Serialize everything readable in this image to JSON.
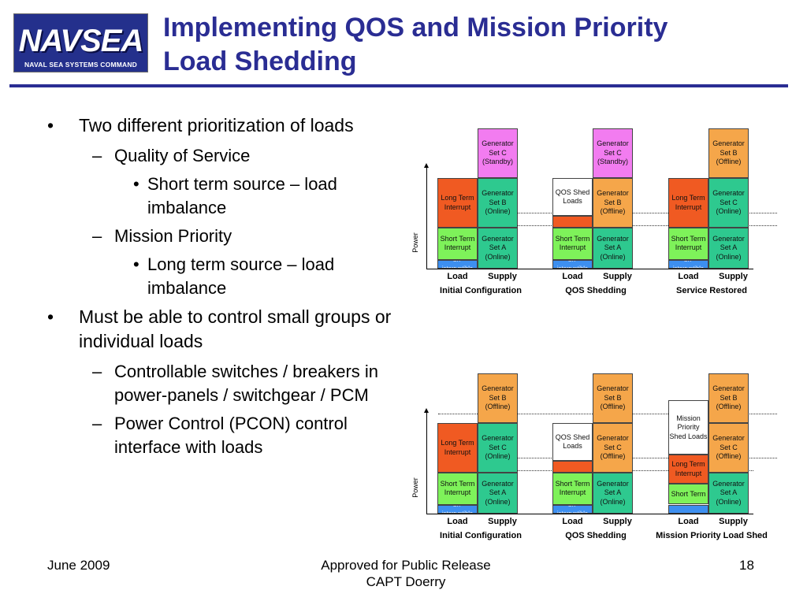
{
  "logo": {
    "word": "NAVSEA",
    "subtitle": "NAVAL SEA SYSTEMS COMMAND"
  },
  "title": {
    "line1": "Implementing QOS and Mission Priority",
    "line2": "Load Shedding"
  },
  "bullets": [
    {
      "level": 1,
      "marker": "•",
      "text": "Two different prioritization of loads"
    },
    {
      "level": 2,
      "marker": "–",
      "text": "Quality of Service"
    },
    {
      "level": 3,
      "marker": "•",
      "text": "Short term source – load imbalance"
    },
    {
      "level": 2,
      "marker": "–",
      "text": "Mission Priority"
    },
    {
      "level": 3,
      "marker": "•",
      "text": "Long term source – load imbalance"
    },
    {
      "level": 1,
      "marker": "•",
      "text": "Must be able to control small groups or individual loads"
    },
    {
      "level": 2,
      "marker": "–",
      "text": "Controllable switches / breakers in power-panels / switchgear / PCM"
    },
    {
      "level": 2,
      "marker": "–",
      "text": "Power Control (PCON) control interface with loads"
    }
  ],
  "colors": {
    "magenta": "#f27cf0",
    "orange": "#f5a64a",
    "red": "#f05a22",
    "green": "#2ec98f",
    "lime": "#7ef25a",
    "blue": "#3d8ff0"
  },
  "rows": [
    {
      "ylabel": "Power",
      "panels": [
        {
          "name": "initial-configuration",
          "caption": "Initial Configuration",
          "load_label": "Load",
          "supply_label": "Supply",
          "load": [
            {
              "text": "Un-interruptible",
              "color": "blue",
              "units": 1
            },
            {
              "text": "Short Term Interrupt",
              "color": "lime",
              "units": 3.5
            },
            {
              "text": "Long Term Interrupt",
              "color": "red",
              "units": 5.5
            }
          ],
          "supply": [
            {
              "text": "Generator Set A (Online)",
              "color": "green",
              "units": 4.5
            },
            {
              "text": "Generator Set B (Online)",
              "color": "green",
              "units": 5.5
            },
            {
              "text": "Generator Set C (Standby)",
              "color": "magenta",
              "units": 5.5
            }
          ]
        },
        {
          "name": "qos-shedding",
          "caption": "QOS Shedding",
          "load_label": "Load",
          "supply_label": "Supply",
          "load": [
            {
              "text": "Un-interruptible",
              "color": "blue",
              "units": 1
            },
            {
              "text": "Short Term Interrupt",
              "color": "lime",
              "units": 3.5
            },
            {
              "text": "",
              "color": "red",
              "units": 1.3
            },
            {
              "text": "QOS Shed Loads",
              "color": "white",
              "units": 4.2
            }
          ],
          "supply": [
            {
              "text": "Generator Set A (Online)",
              "color": "green",
              "units": 4.5
            },
            {
              "text": "Generator Set B (Offline)",
              "color": "orange",
              "units": 5.5
            },
            {
              "text": "Generator Set C (Standby)",
              "color": "magenta",
              "units": 5.5
            }
          ]
        },
        {
          "name": "service-restored",
          "caption": "Service Restored",
          "load_label": "Load",
          "supply_label": "Supply",
          "load": [
            {
              "text": "Un-interruptible",
              "color": "blue",
              "units": 1
            },
            {
              "text": "Short Term Interrupt",
              "color": "lime",
              "units": 3.5
            },
            {
              "text": "Long Term Interrupt",
              "color": "red",
              "units": 5.5
            }
          ],
          "supply": [
            {
              "text": "Generator Set A (Online)",
              "color": "green",
              "units": 4.5
            },
            {
              "text": "Generator Set C (Online)",
              "color": "green",
              "units": 5.5
            },
            {
              "text": "Generator Set B (Offline)",
              "color": "orange",
              "units": 5.5
            }
          ]
        }
      ]
    },
    {
      "ylabel": "Power",
      "panels": [
        {
          "name": "initial-configuration-2",
          "caption": "Initial Configuration",
          "load_label": "Load",
          "supply_label": "Supply",
          "load": [
            {
              "text": "Un-interruptible",
              "color": "blue",
              "units": 1
            },
            {
              "text": "Short Term Interrupt",
              "color": "lime",
              "units": 3.5
            },
            {
              "text": "Long Term Interrupt",
              "color": "red",
              "units": 5.5
            }
          ],
          "supply": [
            {
              "text": "Generator Set A (Online)",
              "color": "green",
              "units": 4.5
            },
            {
              "text": "Generator Set C (Online)",
              "color": "green",
              "units": 5.5
            },
            {
              "text": "Generator Set B (Offline)",
              "color": "orange",
              "units": 5.5
            }
          ]
        },
        {
          "name": "qos-shedding-2",
          "caption": "QOS Shedding",
          "load_label": "Load",
          "supply_label": "Supply",
          "load": [
            {
              "text": "Un-interruptible",
              "color": "blue",
              "units": 1
            },
            {
              "text": "Short Term Interrupt",
              "color": "lime",
              "units": 3.5
            },
            {
              "text": "",
              "color": "red",
              "units": 1.3
            },
            {
              "text": "QOS Shed Loads",
              "color": "white",
              "units": 4.2
            }
          ],
          "supply": [
            {
              "text": "Generator Set A (Online)",
              "color": "green",
              "units": 4.5
            },
            {
              "text": "Generator Set C (Offline)",
              "color": "orange",
              "units": 5.5
            },
            {
              "text": "Generator Set B (Offline)",
              "color": "orange",
              "units": 5.5
            }
          ]
        },
        {
          "name": "mission-priority-load-shed",
          "caption": "Mission Priority Load Shed",
          "load_label": "Load",
          "supply_label": "Supply",
          "load": [
            {
              "text": "",
              "color": "blue",
              "units": 1
            },
            {
              "text": "Short Term",
              "color": "lime",
              "units": 2.3
            },
            {
              "text": "Long Term Interrupt",
              "color": "red",
              "units": 3.2
            },
            {
              "text": "Mission Priority Shed Loads",
              "color": "white",
              "units": 6
            }
          ],
          "supply": [
            {
              "text": "Generator Set A (Online)",
              "color": "green",
              "units": 4.5
            },
            {
              "text": "Generator Set C (Offline)",
              "color": "orange",
              "units": 5.5
            },
            {
              "text": "Generator Set B (Offline)",
              "color": "orange",
              "units": 5.5
            }
          ]
        }
      ]
    }
  ],
  "footer": {
    "date": "June  2009",
    "release": "Approved for Public Release",
    "author": "CAPT Doerry",
    "page": "18"
  }
}
